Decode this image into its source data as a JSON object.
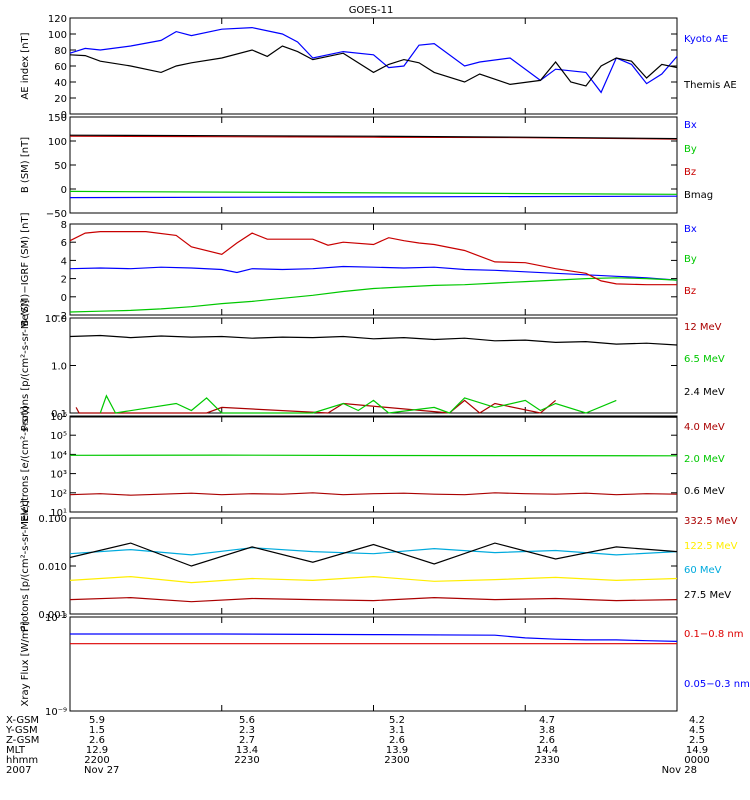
{
  "title": "GOES-11",
  "colors": {
    "black": "#000000",
    "blue": "#0000ff",
    "green": "#00c800",
    "red": "#c80000",
    "darkred": "#aa0000",
    "cyan": "#00aadd",
    "yellow": "#ffee00",
    "xrayred": "#dd0000"
  },
  "chart_data": [
    {
      "type": "line",
      "ylabel": "AE index [nT]",
      "ylim": [
        0,
        120
      ],
      "yticks": [
        "0",
        "20",
        "40",
        "60",
        "80",
        "100",
        "120"
      ],
      "series": [
        {
          "name": "Kyoto AE",
          "color": "blue",
          "x": [
            0,
            0.05,
            0.1,
            0.2,
            0.3,
            0.35,
            0.4,
            0.5,
            0.6,
            0.7,
            0.75,
            0.8,
            0.9,
            1.0,
            1.05,
            1.1,
            1.15,
            1.2,
            1.3,
            1.35,
            1.45,
            1.55,
            1.6,
            1.7,
            1.75,
            1.8,
            1.85,
            1.9,
            1.95,
            2.0
          ],
          "y": [
            76,
            82,
            80,
            85,
            92,
            103,
            98,
            106,
            108,
            100,
            90,
            70,
            78,
            74,
            58,
            60,
            86,
            88,
            60,
            65,
            70,
            42,
            56,
            52,
            27,
            70,
            62,
            38,
            50,
            72
          ]
        },
        {
          "name": "Themis AE",
          "color": "black",
          "x": [
            0,
            0.05,
            0.1,
            0.2,
            0.3,
            0.35,
            0.4,
            0.5,
            0.6,
            0.65,
            0.7,
            0.75,
            0.8,
            0.9,
            1.0,
            1.05,
            1.1,
            1.15,
            1.2,
            1.3,
            1.35,
            1.45,
            1.55,
            1.6,
            1.65,
            1.7,
            1.75,
            1.8,
            1.85,
            1.9,
            1.95,
            2.0
          ],
          "y": [
            74,
            73,
            66,
            60,
            52,
            60,
            64,
            70,
            80,
            72,
            85,
            78,
            68,
            76,
            52,
            62,
            68,
            64,
            52,
            40,
            50,
            37,
            42,
            65,
            40,
            35,
            60,
            70,
            66,
            45,
            62,
            58
          ]
        }
      ]
    },
    {
      "type": "line",
      "ylabel": "B (SM) [nT]",
      "ylim": [
        -50,
        150
      ],
      "yticks": [
        "−50",
        "0",
        "50",
        "100",
        "150"
      ],
      "series": [
        {
          "name": "Bx",
          "color": "blue",
          "x": [
            0,
            2
          ],
          "y": [
            -18,
            -15
          ]
        },
        {
          "name": "By",
          "color": "green",
          "x": [
            0,
            2
          ],
          "y": [
            -5,
            -11
          ]
        },
        {
          "name": "Bz",
          "color": "red",
          "x": [
            0,
            0.5,
            1,
            1.5,
            2
          ],
          "y": [
            110,
            109,
            108,
            107,
            104
          ]
        },
        {
          "name": "Bmag",
          "color": "black",
          "x": [
            0,
            0.5,
            1,
            1.5,
            2
          ],
          "y": [
            112,
            111,
            110,
            108,
            105
          ]
        }
      ]
    },
    {
      "type": "line",
      "ylabel": "B (SM)−IGRF (SM) [nT]",
      "ylim": [
        -2,
        10
      ],
      "yticks": [
        "−2",
        "0",
        "2",
        "4",
        "6",
        "8"
      ],
      "series": [
        {
          "name": "Bx",
          "color": "blue",
          "x": [
            0,
            0.1,
            0.2,
            0.3,
            0.4,
            0.5,
            0.55,
            0.6,
            0.7,
            0.8,
            0.9,
            1.0,
            1.1,
            1.2,
            1.3,
            1.4,
            1.5,
            1.6,
            1.7,
            1.8,
            1.9,
            2.0
          ],
          "y": [
            4.1,
            4.2,
            4.1,
            4.3,
            4.2,
            4.0,
            3.6,
            4.1,
            4.0,
            4.1,
            4.4,
            4.3,
            4.2,
            4.3,
            4.0,
            3.9,
            3.7,
            3.5,
            3.3,
            3.1,
            2.9,
            2.6
          ]
        },
        {
          "name": "By",
          "color": "green",
          "x": [
            0,
            0.1,
            0.2,
            0.3,
            0.4,
            0.5,
            0.6,
            0.7,
            0.8,
            0.9,
            1.0,
            1.1,
            1.2,
            1.3,
            1.4,
            1.5,
            1.6,
            1.7,
            1.8,
            1.9,
            2.0
          ],
          "y": [
            -1.6,
            -1.5,
            -1.4,
            -1.2,
            -0.9,
            -0.5,
            -0.2,
            0.2,
            0.6,
            1.1,
            1.5,
            1.7,
            1.9,
            2.0,
            2.2,
            2.4,
            2.6,
            2.8,
            2.9,
            2.8,
            2.6
          ]
        },
        {
          "name": "Bz",
          "color": "red",
          "x": [
            0,
            0.05,
            0.1,
            0.25,
            0.35,
            0.4,
            0.5,
            0.55,
            0.6,
            0.65,
            0.8,
            0.85,
            0.9,
            1.0,
            1.05,
            1.1,
            1.15,
            1.2,
            1.3,
            1.4,
            1.5,
            1.6,
            1.7,
            1.75,
            1.8,
            1.9,
            2.0
          ],
          "y": [
            7.8,
            8.8,
            9.0,
            9.0,
            8.5,
            7.0,
            6.0,
            7.5,
            8.8,
            8.0,
            8.0,
            7.2,
            7.6,
            7.3,
            8.2,
            7.8,
            7.5,
            7.3,
            6.5,
            5.0,
            4.9,
            4.1,
            3.5,
            2.5,
            2.1,
            2.0,
            2.0
          ]
        }
      ]
    },
    {
      "type": "line",
      "ylabel": "Protons [p/(cm²-s-sr-MeV)]",
      "yscale": "log",
      "ylim": [
        0.1,
        100
      ],
      "yticks": [
        "0.1",
        "1.0",
        "10.0"
      ],
      "series": [
        {
          "name": "12 MeV",
          "color": "darkred",
          "x": [
            0.02,
            0.03,
            0.45,
            0.5,
            0.85,
            0.9,
            1.25,
            1.3,
            1.35,
            1.4,
            1.55,
            1.6
          ],
          "y": [
            0.15,
            0.1,
            0.1,
            0.15,
            0.1,
            0.2,
            0.1,
            0.25,
            0.1,
            0.2,
            0.1,
            0.25
          ]
        },
        {
          "name": "6.5 MeV",
          "color": "green",
          "x": [
            0.1,
            0.12,
            0.15,
            0.35,
            0.4,
            0.45,
            0.5,
            0.8,
            0.9,
            0.95,
            1.0,
            1.05,
            1.2,
            1.25,
            1.3,
            1.4,
            1.5,
            1.55,
            1.6,
            1.7,
            1.8
          ],
          "y": [
            0.1,
            0.35,
            0.1,
            0.2,
            0.12,
            0.3,
            0.1,
            0.1,
            0.2,
            0.12,
            0.25,
            0.1,
            0.15,
            0.1,
            0.3,
            0.15,
            0.25,
            0.12,
            0.2,
            0.1,
            0.25
          ]
        },
        {
          "name": "2.4 MeV",
          "color": "black",
          "x": [
            0,
            0.1,
            0.2,
            0.3,
            0.4,
            0.5,
            0.6,
            0.7,
            0.8,
            0.9,
            1.0,
            1.1,
            1.2,
            1.3,
            1.4,
            1.5,
            1.6,
            1.7,
            1.8,
            1.9,
            2.0
          ],
          "y": [
            26,
            28,
            24,
            27,
            25,
            26,
            23,
            25,
            24,
            26,
            22,
            24,
            21,
            23,
            19,
            20,
            17,
            18,
            15,
            16,
            14
          ]
        }
      ]
    },
    {
      "type": "line",
      "ylabel": "Electrons [e/(cm²-s-sr)]",
      "yscale": "log",
      "ylim": [
        10,
        1000000
      ],
      "yticks": [
        "10¹",
        "10²",
        "10³",
        "10⁴",
        "10⁵",
        "10⁶"
      ],
      "series": [
        {
          "name": "4.0 MeV",
          "color": "darkred",
          "x": [
            0,
            0.1,
            0.2,
            0.3,
            0.4,
            0.5,
            0.6,
            0.7,
            0.8,
            0.9,
            1.0,
            1.1,
            1.2,
            1.3,
            1.4,
            1.5,
            1.6,
            1.7,
            1.8,
            1.9,
            2.0
          ],
          "y": [
            80,
            90,
            75,
            85,
            95,
            80,
            90,
            85,
            100,
            80,
            90,
            95,
            85,
            80,
            100,
            90,
            85,
            95,
            80,
            90,
            85
          ]
        },
        {
          "name": "2.0 MeV",
          "color": "green",
          "x": [
            0,
            0.5,
            1,
            1.5,
            2
          ],
          "y": [
            9000,
            9200,
            8800,
            8700,
            8500
          ]
        },
        {
          "name": "0.6 MeV",
          "color": "black",
          "x": [
            0,
            0.5,
            1,
            1.5,
            2
          ],
          "y": [
            900000,
            910000,
            900000,
            890000,
            880000
          ]
        }
      ]
    },
    {
      "type": "line",
      "ylabel": "Protons [p/(cm²-s-sr-MeV)]",
      "yscale": "log",
      "ylim": [
        0.001,
        0.1
      ],
      "yticks": [
        "0.001",
        "0.010",
        "0.100"
      ],
      "series": [
        {
          "name": "332.5 MeV",
          "color": "darkred",
          "x": [
            0,
            0.2,
            0.4,
            0.6,
            0.8,
            1.0,
            1.2,
            1.4,
            1.6,
            1.8,
            2.0
          ],
          "y": [
            0.002,
            0.0022,
            0.0018,
            0.0021,
            0.002,
            0.0019,
            0.0022,
            0.002,
            0.0021,
            0.0019,
            0.002
          ]
        },
        {
          "name": "122.5 MeV",
          "color": "yellow",
          "x": [
            0,
            0.2,
            0.4,
            0.6,
            0.8,
            1.0,
            1.2,
            1.4,
            1.6,
            1.8,
            2.0
          ],
          "y": [
            0.005,
            0.006,
            0.0045,
            0.0055,
            0.005,
            0.006,
            0.0048,
            0.0052,
            0.0058,
            0.005,
            0.0055
          ]
        },
        {
          "name": "60 MeV",
          "color": "cyan",
          "x": [
            0,
            0.2,
            0.4,
            0.6,
            0.8,
            1.0,
            1.2,
            1.4,
            1.6,
            1.8,
            2.0
          ],
          "y": [
            0.018,
            0.022,
            0.017,
            0.024,
            0.02,
            0.018,
            0.023,
            0.019,
            0.021,
            0.017,
            0.02
          ]
        },
        {
          "name": "27.5 MeV",
          "color": "black",
          "x": [
            0,
            0.2,
            0.4,
            0.6,
            0.8,
            1.0,
            1.2,
            1.4,
            1.6,
            1.8,
            2.0
          ],
          "y": [
            0.015,
            0.03,
            0.01,
            0.025,
            0.012,
            0.028,
            0.011,
            0.03,
            0.014,
            0.025,
            0.02
          ]
        }
      ]
    },
    {
      "type": "line",
      "ylabel": "Xray Flux [W/m²]",
      "yscale": "log",
      "ylim": [
        1e-09,
        1e-08
      ],
      "yticks": [
        "10⁻⁹",
        "10⁻⁸"
      ],
      "series": [
        {
          "name": "0.1−0.8 nm",
          "color": "xrayred",
          "x": [
            0,
            2
          ],
          "y": [
            5.2e-09,
            5.2e-09
          ]
        },
        {
          "name": "0.05−0.3 nm",
          "color": "blue",
          "x": [
            0,
            0.5,
            1.0,
            1.4,
            1.5,
            1.6,
            1.7,
            1.8,
            1.9,
            2.0
          ],
          "y": [
            6.6e-09,
            6.6e-09,
            6.5e-09,
            6.4e-09,
            6e-09,
            5.8e-09,
            5.7e-09,
            5.7e-09,
            5.6e-09,
            5.5e-09
          ]
        }
      ]
    }
  ],
  "legends": [
    [
      {
        "text": "Kyoto AE",
        "color": "blue"
      },
      {
        "text": "Themis AE",
        "color": "black"
      }
    ],
    [
      {
        "text": "Bx",
        "color": "blue"
      },
      {
        "text": "By",
        "color": "green"
      },
      {
        "text": "Bz",
        "color": "red"
      },
      {
        "text": "Bmag",
        "color": "black"
      }
    ],
    [
      {
        "text": "Bx",
        "color": "blue"
      },
      {
        "text": "By",
        "color": "green"
      },
      {
        "text": "Bz",
        "color": "red"
      }
    ],
    [
      {
        "text": "12 MeV",
        "color": "darkred"
      },
      {
        "text": "6.5 MeV",
        "color": "green"
      },
      {
        "text": "2.4 MeV",
        "color": "black"
      }
    ],
    [
      {
        "text": "4.0 MeV",
        "color": "darkred"
      },
      {
        "text": "2.0 MeV",
        "color": "green"
      },
      {
        "text": "0.6 MeV",
        "color": "black"
      }
    ],
    [
      {
        "text": "332.5 MeV",
        "color": "darkred"
      },
      {
        "text": "122.5 MeV",
        "color": "yellow"
      },
      {
        "text": "60 MeV",
        "color": "cyan"
      },
      {
        "text": "27.5 MeV",
        "color": "black"
      }
    ],
    [
      {
        "text": "0.1−0.8 nm",
        "color": "xrayred"
      },
      {
        "text": "0.05−0.3 nm",
        "color": "blue"
      }
    ]
  ],
  "ephemeris": {
    "labels": [
      "X-GSM",
      "Y-GSM",
      "Z-GSM",
      "MLT",
      "hhmm",
      "2007"
    ],
    "columns": [
      [
        "5.9",
        "1.5",
        "2.6",
        "12.9",
        "2200",
        "Nov 27"
      ],
      [
        "5.6",
        "2.3",
        "2.7",
        "13.4",
        "2230",
        ""
      ],
      [
        "5.2",
        "3.1",
        "2.6",
        "13.9",
        "2300",
        ""
      ],
      [
        "4.7",
        "3.8",
        "2.6",
        "14.4",
        "2330",
        ""
      ],
      [
        "4.2",
        "4.5",
        "2.5",
        "14.9",
        "0000",
        "Nov 28"
      ]
    ]
  }
}
